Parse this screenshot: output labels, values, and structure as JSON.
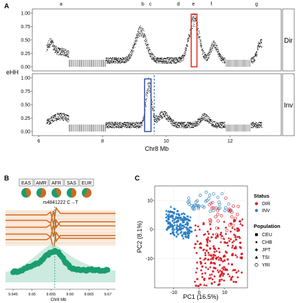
{
  "panels": {
    "A": {
      "letter": "A",
      "ylabel": "eHH",
      "xlabel": "Chr8 Mb",
      "x_ticks": [
        "6",
        "8",
        "10",
        "12"
      ],
      "x_tick_values": [
        6,
        8,
        10,
        12
      ],
      "xlim": [
        5.8,
        13.6
      ],
      "y_ticks": [
        "0.00",
        "0.25",
        "0.50",
        "0.75",
        "1.00"
      ],
      "y_tick_values": [
        0,
        0.25,
        0.5,
        0.75,
        1
      ],
      "facets": [
        "Dir",
        "Inv"
      ],
      "region_labels": [
        {
          "label": "a",
          "start": 6.55,
          "end": 6.85
        },
        {
          "label": "b",
          "start": 9.15,
          "end": 9.38
        },
        {
          "label": "c",
          "start": 9.38,
          "end": 9.62
        },
        {
          "label": "d",
          "start": 10.25,
          "end": 10.5
        },
        {
          "label": "e",
          "start": 10.7,
          "end": 11.0
        },
        {
          "label": "f",
          "start": 11.3,
          "end": 11.52
        },
        {
          "label": "g",
          "start": 12.7,
          "end": 12.95
        }
      ],
      "dir_highlight": {
        "x0": 10.78,
        "x1": 10.96,
        "y0": 0.0,
        "y1": 0.98,
        "color": "#e3261f"
      },
      "inv_highlight": {
        "x0": 9.32,
        "x1": 9.52,
        "y0": 0.0,
        "y1": 0.98,
        "color": "#2c4ea3"
      },
      "inv_dashed_x": 9.62,
      "gap_regions": [
        {
          "start": 6.95,
          "end": 8.1
        },
        {
          "start": 11.85,
          "end": 12.65
        }
      ],
      "inversion_span": [
        8.1,
        11.85
      ],
      "marker_color": "#000000"
    },
    "B": {
      "letter": "B",
      "populations": [
        "EAS",
        "AMR",
        "AFR",
        "SAS",
        "EUR"
      ],
      "pie_fractions_orange": [
        0.45,
        0.55,
        0.4,
        0.5,
        0.6
      ],
      "snp_label": "rs4841222 C→T",
      "snp_x": 9.656,
      "xlabel": "Chr8 Mb",
      "x_ticks": [
        "9.645",
        "9.65",
        "9.655",
        "9.66",
        "9.665",
        "9.67"
      ],
      "x_tick_values": [
        9.645,
        9.65,
        9.655,
        9.66,
        9.665,
        9.67
      ],
      "xlim": [
        9.643,
        9.672
      ],
      "orange_color": "#d2691e",
      "green_color": "#1a9e6e",
      "green_light": "#bfe5d8",
      "orange_light": "#f6d9c2"
    },
    "C": {
      "letter": "C",
      "xlabel": "PC1 (16.5%)",
      "ylabel": "PC2 (8.1%)",
      "x_ticks": [
        "-10",
        "0",
        "10"
      ],
      "x_tick_values": [
        -10,
        0,
        10
      ],
      "y_ticks": [
        "-10",
        "0",
        "10"
      ],
      "y_tick_values": [
        -10,
        0,
        10
      ],
      "xlim": [
        -17.5,
        19
      ],
      "ylim": [
        -20,
        15
      ],
      "legend": {
        "status_title": "Status",
        "status_items": [
          {
            "label": "DIR",
            "color": "#d7202a"
          },
          {
            "label": "INV",
            "color": "#2b7fc4"
          }
        ],
        "population_title": "Population",
        "population_items": [
          {
            "label": "CEU",
            "shape": "square"
          },
          {
            "label": "CHB",
            "shape": "dot"
          },
          {
            "label": "JPT",
            "shape": "diamond"
          },
          {
            "label": "TSI",
            "shape": "triangle"
          },
          {
            "label": "YRI",
            "shape": "circle-open"
          }
        ]
      }
    }
  },
  "chart_data": [
    {
      "type": "scatter",
      "title": "",
      "xlabel": "Chr8 Mb",
      "ylabel": "eHH",
      "facets": [
        "Dir",
        "Inv"
      ],
      "xlim": [
        5.8,
        13.6
      ],
      "ylim": [
        0,
        1
      ],
      "series": [
        {
          "name": "Dir",
          "description_peak_x": [
            9.2,
            10.85
          ],
          "peak_y": [
            0.75,
            0.98
          ]
        },
        {
          "name": "Inv",
          "description_peak_x": [
            9.45
          ],
          "peak_y": [
            1.0
          ]
        }
      ]
    },
    {
      "type": "line",
      "xlabel": "Chr8 Mb",
      "xlim": [
        9.643,
        9.672
      ],
      "series": [
        {
          "name": "",
          "x": [
            9.645,
            9.65,
            9.655,
            9.66,
            9.665,
            9.67
          ],
          "values": [
            0.3,
            0.35,
            0.9,
            0.35,
            0.25,
            0.25
          ]
        }
      ]
    },
    {
      "type": "scatter",
      "xlabel": "PC1 (16.5%)",
      "ylabel": "PC2 (8.1%)",
      "series": [
        {
          "name": "DIR",
          "center": [
            8,
            -5
          ]
        },
        {
          "name": "INV",
          "center": [
            -10,
            2
          ]
        }
      ]
    }
  ]
}
